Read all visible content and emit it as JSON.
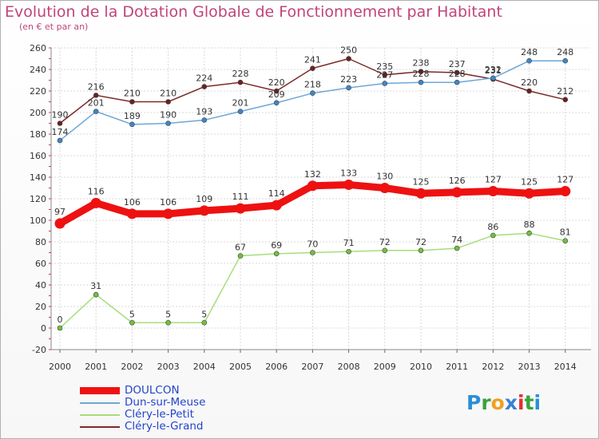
{
  "chart_data": {
    "type": "line",
    "title": "Evolution de la Dotation Globale de Fonctionnement par Habitant",
    "subtitle": "(en € et par an)",
    "xlabel": "",
    "ylabel": "",
    "ylim": [
      -20,
      260
    ],
    "y_ticks": [
      "-20",
      "0",
      "20",
      "40",
      "60",
      "80",
      "100",
      "120",
      "140",
      "160",
      "180",
      "200",
      "220",
      "240",
      "260"
    ],
    "categories": [
      "2000",
      "2001",
      "2002",
      "2003",
      "2004",
      "2005",
      "2006",
      "2007",
      "2008",
      "2009",
      "2010",
      "2011",
      "2012",
      "2013",
      "2014"
    ],
    "grid": true,
    "legend_position": "bottom-left",
    "series": [
      {
        "name": "Cléry-le-Grand",
        "color": "#7a2a2a",
        "point_color": "#6e1f1f",
        "values": [
          190,
          216,
          210,
          210,
          224,
          228,
          220,
          241,
          250,
          235,
          238,
          237,
          231,
          220,
          212
        ]
      },
      {
        "name": "Dun-sur-Meuse",
        "color": "#6ea6d8",
        "point_color": "#3f86c8",
        "values": [
          174,
          201,
          189,
          190,
          193,
          201,
          209,
          218,
          223,
          227,
          228,
          228,
          232,
          248,
          248
        ]
      },
      {
        "name": "Cléry-le-Petit",
        "color": "#a8dc7c",
        "point_color": "#6fc23a",
        "values": [
          0,
          31,
          5,
          5,
          5,
          67,
          69,
          70,
          71,
          72,
          72,
          74,
          86,
          88,
          81
        ]
      },
      {
        "name": "DOULCON",
        "color": "#ee1111",
        "point_color": "#ee1111",
        "values": [
          97,
          116,
          106,
          106,
          109,
          111,
          114,
          132,
          133,
          130,
          125,
          126,
          127,
          125,
          127
        ]
      }
    ]
  },
  "legend": [
    {
      "label": "DOULCON",
      "color": "#ee1111"
    },
    {
      "label": "Dun-sur-Meuse",
      "color": "#6ea6d8"
    },
    {
      "label": "Cléry-le-Petit",
      "color": "#a8dc7c"
    },
    {
      "label": "Cléry-le-Grand",
      "color": "#7a2a2a"
    }
  ],
  "logo": {
    "letters": [
      "P",
      "r",
      "o",
      "x",
      "i",
      "t",
      "i"
    ],
    "colors": [
      "#2a8fd6",
      "#3aa33a",
      "#f0a020",
      "#3a7fd6",
      "#e03030",
      "#3aa33a",
      "#2a8fd6"
    ]
  }
}
